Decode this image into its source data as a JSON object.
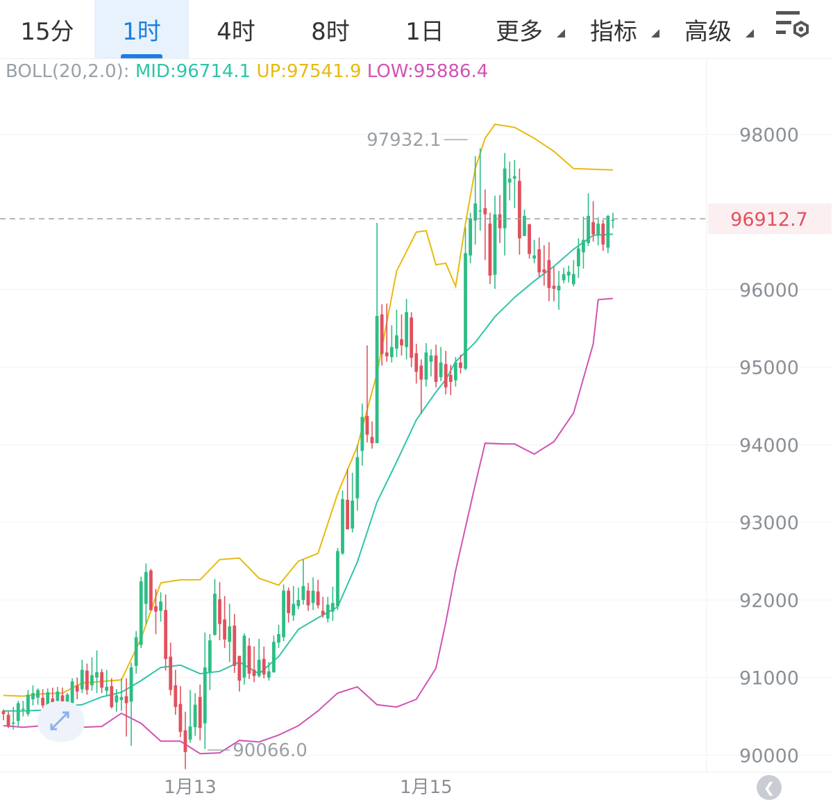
{
  "tabs": [
    {
      "label": "15分",
      "active": false,
      "dropdown": false
    },
    {
      "label": "1时",
      "active": true,
      "dropdown": false
    },
    {
      "label": "4时",
      "active": false,
      "dropdown": false
    },
    {
      "label": "8时",
      "active": false,
      "dropdown": false
    },
    {
      "label": "1日",
      "active": false,
      "dropdown": false
    },
    {
      "label": "更多",
      "active": false,
      "dropdown": true
    },
    {
      "label": "指标",
      "active": false,
      "dropdown": true
    },
    {
      "label": "高级",
      "active": false,
      "dropdown": true
    }
  ],
  "toolbar": {
    "settings_icon": "chart-settings-icon"
  },
  "indicator": {
    "name": "BOLL(20,2.0):",
    "mid": "MID:96714.1",
    "up": "UP:97541.9",
    "low": "LOW:95886.4"
  },
  "colors": {
    "up_candle": "#2ebd85",
    "down_candle": "#e0515d",
    "mid_line": "#2ec4a8",
    "upper_line": "#e8b90e",
    "lower_line": "#d152b4",
    "current_price": "#e0515d",
    "accent": "#1c7fe0"
  },
  "chart_data": {
    "type": "candlestick",
    "interval": "1时",
    "y_ticks": [
      98000,
      96000,
      95000,
      94000,
      93000,
      92000,
      91000,
      90000
    ],
    "ylim": [
      89780,
      98980
    ],
    "x_labels": [
      {
        "index": 38,
        "label": "1月13"
      },
      {
        "index": 86,
        "label": "1月15"
      }
    ],
    "current_price": 96912.7,
    "current_price_label": "96912.7",
    "max_annotation": {
      "index": 95,
      "value": 97932.1,
      "label": "97932.1"
    },
    "min_annotation": {
      "index": 41,
      "value": 90066.0,
      "label": "90066.0"
    },
    "candles": [
      [
        90570,
        90590,
        90530,
        90450
      ],
      [
        90520,
        90560,
        90380,
        90350
      ],
      [
        90420,
        90620,
        90420,
        90330
      ],
      [
        90440,
        90700,
        90670,
        90370
      ],
      [
        90590,
        90700,
        90600,
        90500
      ],
      [
        90530,
        90840,
        90780,
        90500
      ],
      [
        90720,
        90900,
        90800,
        90640
      ],
      [
        90740,
        90860,
        90840,
        90650
      ],
      [
        90740,
        90850,
        90640,
        90570
      ],
      [
        90620,
        90860,
        90810,
        90580
      ],
      [
        90730,
        90870,
        90600,
        90600
      ],
      [
        90700,
        90880,
        90820,
        90620
      ],
      [
        90770,
        90870,
        90680,
        90600
      ],
      [
        90680,
        90800,
        90780,
        90620
      ],
      [
        90670,
        90990,
        90950,
        90650
      ],
      [
        90900,
        91000,
        90820,
        90720
      ],
      [
        90850,
        91230,
        91100,
        90800
      ],
      [
        91090,
        91180,
        90840,
        90780
      ],
      [
        90900,
        91260,
        91030,
        90830
      ],
      [
        91000,
        91350,
        91070,
        90800
      ],
      [
        91070,
        91110,
        90870,
        90800
      ],
      [
        90830,
        91100,
        90880,
        90770
      ],
      [
        90890,
        90990,
        90620,
        90600
      ],
      [
        90680,
        90850,
        90770,
        90560
      ],
      [
        90710,
        90990,
        90750,
        90570
      ],
      [
        90760,
        90990,
        90670,
        90240
      ],
      [
        90690,
        91190,
        91130,
        90120
      ],
      [
        91150,
        91600,
        91520,
        91050
      ],
      [
        91420,
        92300,
        92240,
        91380
      ],
      [
        91950,
        92470,
        92360,
        91690
      ],
      [
        92380,
        92400,
        91870,
        91860
      ],
      [
        91920,
        92140,
        91850,
        91560
      ],
      [
        91860,
        92100,
        91980,
        91720
      ],
      [
        91870,
        92070,
        91240,
        91090
      ],
      [
        91270,
        91450,
        90840,
        90770
      ],
      [
        90900,
        91100,
        90620,
        90520
      ],
      [
        90660,
        90890,
        90300,
        90230
      ],
      [
        90320,
        90560,
        90040,
        89820
      ],
      [
        90200,
        90840,
        90370,
        90160
      ],
      [
        90360,
        90800,
        90650,
        90250
      ],
      [
        90750,
        90910,
        90350,
        90190
      ],
      [
        90410,
        91580,
        91130,
        90080
      ],
      [
        91070,
        91560,
        91480,
        90840
      ],
      [
        91550,
        92270,
        92080,
        91540
      ],
      [
        92010,
        92230,
        91690,
        91480
      ],
      [
        91750,
        92050,
        91490,
        91380
      ],
      [
        91460,
        91950,
        91660,
        91200
      ],
      [
        91670,
        91820,
        91150,
        91060
      ],
      [
        91280,
        91280,
        90960,
        90820
      ],
      [
        91000,
        91570,
        91540,
        90910
      ],
      [
        91410,
        91510,
        91050,
        90980
      ],
      [
        91100,
        91400,
        91020,
        90940
      ],
      [
        91020,
        91500,
        91230,
        91000
      ],
      [
        91240,
        91400,
        91040,
        90990
      ],
      [
        91000,
        91200,
        91080,
        90960
      ],
      [
        91070,
        91540,
        91460,
        91060
      ],
      [
        91450,
        91680,
        91560,
        91380
      ],
      [
        91520,
        92200,
        92120,
        91470
      ],
      [
        92120,
        92160,
        91830,
        91710
      ],
      [
        91800,
        92180,
        91950,
        91730
      ],
      [
        91920,
        92160,
        92000,
        91880
      ],
      [
        92000,
        92520,
        92180,
        91940
      ],
      [
        92120,
        92220,
        91930,
        91860
      ],
      [
        91960,
        92290,
        92120,
        91870
      ],
      [
        92110,
        92260,
        91930,
        91890
      ],
      [
        91860,
        92040,
        91810,
        91770
      ],
      [
        91760,
        92040,
        91940,
        91710
      ],
      [
        91850,
        92170,
        91960,
        91730
      ],
      [
        91920,
        92670,
        92630,
        91870
      ],
      [
        92600,
        93410,
        93300,
        92580
      ],
      [
        93290,
        93690,
        92910,
        92910
      ],
      [
        92920,
        93640,
        93280,
        92870
      ],
      [
        93310,
        94000,
        93840,
        93150
      ],
      [
        93920,
        94530,
        94360,
        93730
      ],
      [
        94370,
        95280,
        94130,
        94030
      ],
      [
        94100,
        94300,
        94020,
        93950
      ],
      [
        94020,
        96860,
        95660,
        94290
      ],
      [
        95680,
        95810,
        95170,
        95020
      ],
      [
        95190,
        95820,
        95140,
        95070
      ],
      [
        95130,
        95540,
        95260,
        95060
      ],
      [
        95240,
        95740,
        95410,
        95130
      ],
      [
        95360,
        95680,
        95280,
        95150
      ],
      [
        95260,
        95880,
        95710,
        95100
      ],
      [
        95640,
        95710,
        95120,
        95000
      ],
      [
        95180,
        95300,
        94940,
        94790
      ],
      [
        95020,
        95100,
        94840,
        94400
      ],
      [
        94840,
        95310,
        95190,
        94750
      ],
      [
        95070,
        95230,
        95150,
        94880
      ],
      [
        95150,
        95290,
        94810,
        94740
      ],
      [
        94870,
        95260,
        95060,
        94820
      ],
      [
        95040,
        95210,
        94740,
        94650
      ],
      [
        94900,
        95030,
        94810,
        94640
      ],
      [
        94830,
        95130,
        95060,
        94750
      ],
      [
        95060,
        95160,
        94990,
        94920
      ],
      [
        94980,
        96800,
        96470,
        94960
      ],
      [
        96440,
        96990,
        96910,
        96340
      ],
      [
        96890,
        97720,
        97110,
        96580
      ],
      [
        97020,
        97820,
        97020,
        96760
      ],
      [
        97050,
        97290,
        96970,
        96380
      ],
      [
        96850,
        96990,
        96180,
        96070
      ],
      [
        96190,
        97210,
        96970,
        96010
      ],
      [
        96970,
        97220,
        96790,
        96600
      ],
      [
        96790,
        97760,
        97560,
        96440
      ],
      [
        97380,
        97650,
        97430,
        97150
      ],
      [
        97430,
        97670,
        97460,
        97050
      ],
      [
        97400,
        97560,
        96660,
        96450
      ],
      [
        96690,
        97030,
        96950,
        96740
      ],
      [
        96840,
        96850,
        96460,
        96400
      ],
      [
        96400,
        96640,
        96440,
        96340
      ],
      [
        96520,
        96670,
        96220,
        96160
      ],
      [
        96260,
        96570,
        96220,
        96050
      ],
      [
        96380,
        96610,
        96020,
        95850
      ],
      [
        96050,
        96290,
        96010,
        95850
      ],
      [
        95990,
        96240,
        96050,
        95740
      ],
      [
        96120,
        96280,
        96200,
        96080
      ],
      [
        96180,
        96310,
        96230,
        96090
      ],
      [
        96070,
        96380,
        96200,
        96040
      ],
      [
        96300,
        96660,
        96530,
        96150
      ],
      [
        96480,
        96940,
        96640,
        96270
      ],
      [
        96600,
        97240,
        96950,
        96560
      ],
      [
        96870,
        97140,
        96710,
        96620
      ],
      [
        96710,
        96930,
        96850,
        96570
      ],
      [
        96850,
        96900,
        96580,
        96500
      ],
      [
        96540,
        96960,
        96950,
        96470
      ],
      [
        96890,
        96990,
        96900,
        96790
      ]
    ],
    "bands": {
      "mid": [
        [
          0,
          90570
        ],
        [
          4,
          90570
        ],
        [
          8,
          90580
        ],
        [
          12,
          90630
        ],
        [
          16,
          90650
        ],
        [
          20,
          90750
        ],
        [
          24,
          90810
        ],
        [
          28,
          90960
        ],
        [
          32,
          91130
        ],
        [
          36,
          91160
        ],
        [
          40,
          91050
        ],
        [
          44,
          91080
        ],
        [
          48,
          91200
        ],
        [
          52,
          91050
        ],
        [
          56,
          91270
        ],
        [
          60,
          91620
        ],
        [
          64,
          91770
        ],
        [
          68,
          91910
        ],
        [
          72,
          92490
        ],
        [
          76,
          93260
        ],
        [
          80,
          93780
        ],
        [
          84,
          94320
        ],
        [
          88,
          94680
        ],
        [
          90,
          94840
        ],
        [
          92,
          95070
        ],
        [
          96,
          95320
        ],
        [
          100,
          95650
        ],
        [
          104,
          95900
        ],
        [
          108,
          96110
        ],
        [
          112,
          96300
        ],
        [
          116,
          96520
        ],
        [
          120,
          96700
        ],
        [
          124,
          96714
        ]
      ],
      "upper": [
        [
          0,
          90770
        ],
        [
          4,
          90760
        ],
        [
          8,
          90790
        ],
        [
          12,
          90800
        ],
        [
          16,
          90930
        ],
        [
          20,
          90950
        ],
        [
          24,
          90970
        ],
        [
          28,
          91500
        ],
        [
          32,
          92220
        ],
        [
          36,
          92260
        ],
        [
          40,
          92260
        ],
        [
          44,
          92520
        ],
        [
          48,
          92540
        ],
        [
          52,
          92280
        ],
        [
          56,
          92190
        ],
        [
          60,
          92500
        ],
        [
          64,
          92600
        ],
        [
          68,
          93370
        ],
        [
          72,
          93980
        ],
        [
          76,
          94920
        ],
        [
          80,
          96240
        ],
        [
          84,
          96740
        ],
        [
          86,
          96760
        ],
        [
          88,
          96320
        ],
        [
          90,
          96340
        ],
        [
          92,
          96040
        ],
        [
          94,
          96850
        ],
        [
          96,
          97560
        ],
        [
          98,
          97950
        ],
        [
          100,
          98130
        ],
        [
          104,
          98090
        ],
        [
          108,
          97950
        ],
        [
          112,
          97780
        ],
        [
          116,
          97560
        ],
        [
          120,
          97550
        ],
        [
          124,
          97541
        ]
      ],
      "lower": [
        [
          0,
          90380
        ],
        [
          4,
          90360
        ],
        [
          8,
          90380
        ],
        [
          12,
          90400
        ],
        [
          16,
          90360
        ],
        [
          20,
          90370
        ],
        [
          24,
          90540
        ],
        [
          28,
          90410
        ],
        [
          32,
          90180
        ],
        [
          36,
          90180
        ],
        [
          40,
          90020
        ],
        [
          44,
          90030
        ],
        [
          48,
          90190
        ],
        [
          52,
          90170
        ],
        [
          56,
          90260
        ],
        [
          60,
          90380
        ],
        [
          64,
          90570
        ],
        [
          68,
          90800
        ],
        [
          72,
          90880
        ],
        [
          76,
          90650
        ],
        [
          80,
          90620
        ],
        [
          84,
          90720
        ],
        [
          88,
          91120
        ],
        [
          90,
          91710
        ],
        [
          92,
          92380
        ],
        [
          96,
          93490
        ],
        [
          98,
          94020
        ],
        [
          102,
          94010
        ],
        [
          104,
          94010
        ],
        [
          108,
          93880
        ],
        [
          112,
          94040
        ],
        [
          116,
          94410
        ],
        [
          120,
          95300
        ],
        [
          121,
          95870
        ],
        [
          124,
          95886
        ]
      ]
    }
  }
}
